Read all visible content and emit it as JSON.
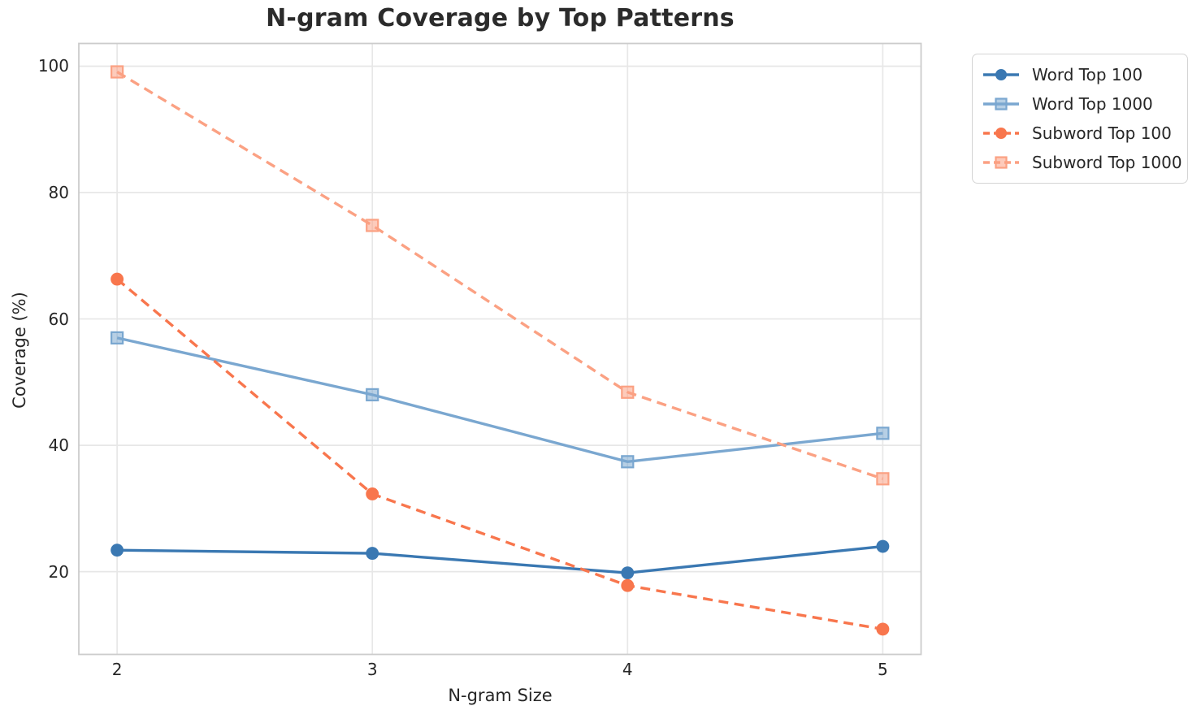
{
  "chart_data": {
    "type": "line",
    "title": "N-gram Coverage by Top Patterns",
    "xlabel": "N-gram Size",
    "ylabel": "Coverage (%)",
    "x": [
      2,
      3,
      4,
      5
    ],
    "xticks": [
      2,
      3,
      4,
      5
    ],
    "yticks": [
      20,
      40,
      60,
      80,
      100
    ],
    "xlim": [
      1.85,
      5.15
    ],
    "ylim": [
      6.9,
      103.6
    ],
    "grid": true,
    "legend_position": "outside-right-top",
    "series": [
      {
        "name": "Word Top 100",
        "color": "#3A78B2",
        "marker": "circle",
        "linestyle": "solid",
        "values": [
          23.4,
          22.9,
          19.8,
          24.0
        ]
      },
      {
        "name": "Word Top 1000",
        "color": "#7AA7D0",
        "marker": "square",
        "linestyle": "solid",
        "values": [
          57.0,
          48.0,
          37.4,
          41.9
        ]
      },
      {
        "name": "Subword Top 100",
        "color": "#F8764D",
        "marker": "circle",
        "linestyle": "dashed",
        "values": [
          66.3,
          32.3,
          17.8,
          10.9
        ]
      },
      {
        "name": "Subword Top 1000",
        "color": "#FBA183",
        "marker": "square",
        "linestyle": "dashed",
        "values": [
          99.1,
          74.8,
          48.4,
          34.7
        ]
      }
    ],
    "axis_colors": {
      "grid": "#E7E7E7",
      "spine": "#CCCCCC",
      "text": "#262626"
    }
  }
}
